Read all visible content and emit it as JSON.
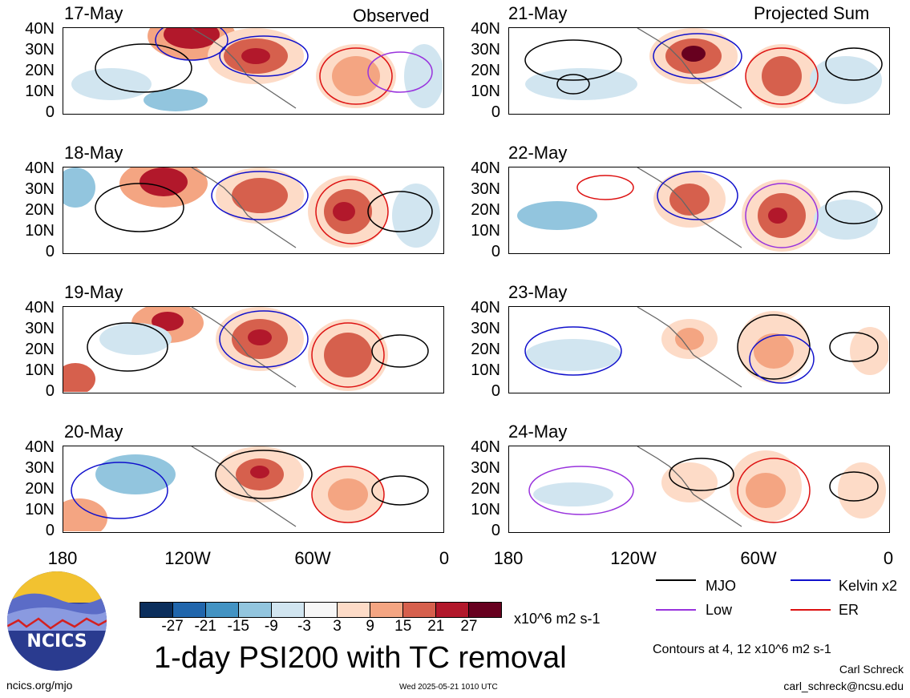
{
  "column_titles": {
    "left": "Observed",
    "right": "Projected Sum"
  },
  "panels_left": [
    {
      "date": "17-May"
    },
    {
      "date": "18-May"
    },
    {
      "date": "19-May"
    },
    {
      "date": "20-May"
    }
  ],
  "panels_right": [
    {
      "date": "21-May"
    },
    {
      "date": "22-May"
    },
    {
      "date": "23-May"
    },
    {
      "date": "24-May"
    }
  ],
  "lat_labels": [
    "40N",
    "30N",
    "20N",
    "10N",
    "0"
  ],
  "lon_labels": [
    "180",
    "120W",
    "60W",
    "0"
  ],
  "colorbar": {
    "labels": [
      "-27",
      "-21",
      "-15",
      "-9",
      "-3",
      "3",
      "9",
      "15",
      "21",
      "27"
    ],
    "colors": [
      "#0b2e5c",
      "#2166ac",
      "#4393c3",
      "#92c5de",
      "#d1e5f0",
      "#f7f7f7",
      "#fddbc7",
      "#f4a582",
      "#d6604d",
      "#b2182b",
      "#67001f"
    ],
    "units": "x10^6 m2 s-1"
  },
  "legend": {
    "items": [
      {
        "label": "MJO",
        "color": "#000000"
      },
      {
        "label": "Kelvin x2",
        "color": "#1010cc"
      },
      {
        "label": "Low",
        "color": "#9933dd"
      },
      {
        "label": "ER",
        "color": "#dd1111"
      }
    ],
    "contours_note": "Contours at 4, 12 x10^6 m2 s-1"
  },
  "title": "1-day PSI200 with TC removal",
  "logo_text": "NCICS",
  "website": "ncics.org/mjo",
  "timestamp": "Wed 2025-05-21 1010 UTC",
  "author": "Carl Schreck",
  "email": "carl_schreck@ncsu.edu"
}
